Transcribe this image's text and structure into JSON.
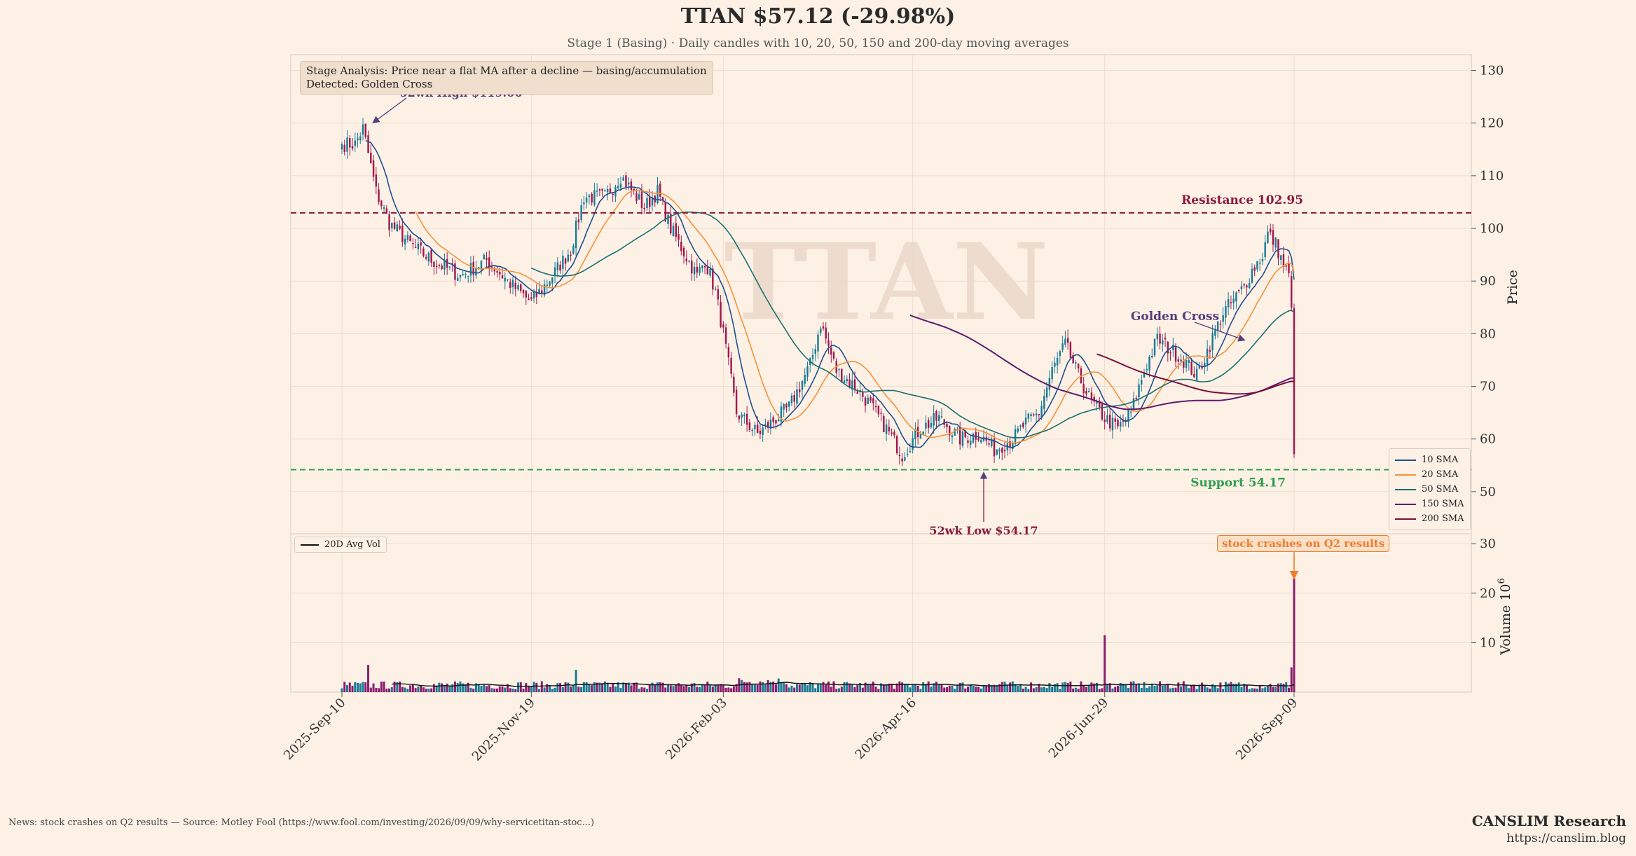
{
  "header": {
    "title": "TTAN  $57.12  (-29.98%)",
    "subtitle": "Stage 1 (Basing)  ·  Daily candles with 10, 20, 50, 150 and 200-day moving averages"
  },
  "stage_box": {
    "line1": "Stage Analysis: Price near a flat MA after a decline — basing/accumulation",
    "line2": "Detected: Golden Cross"
  },
  "watermark": "TTAN",
  "footer": {
    "news": "News: stock crashes on Q2 results — Source: Motley Fool (https://www.fool.com/investing/2026/09/09/why-servicetitan-stoc...)",
    "brand": "CANSLIM Research",
    "url": "https://canslim.blog"
  },
  "colors": {
    "background": "#fdf1e6",
    "candle_up": "#1a7a95",
    "candle_down": "#a3174e",
    "resistance": "#8b1a3e",
    "support": "#2e9e4e",
    "sma10": "#1f4f8f",
    "sma20": "#f5913a",
    "sma50": "#1b6f73",
    "sma150": "#5e1b6e",
    "sma200": "#7a0f3c",
    "event": "#f07c2e"
  },
  "chart_data": {
    "type": "candlestick",
    "x_ticks": [
      "2025-Sep-10",
      "2025-Nov-19",
      "2026-Feb-03",
      "2026-Apr-16",
      "2026-Jun-29",
      "2026-Sep-09"
    ],
    "price_axis": {
      "label": "Price",
      "ylim": [
        42,
        133
      ],
      "ticks": [
        50,
        60,
        70,
        80,
        90,
        100,
        110,
        120,
        130
      ]
    },
    "volume_axis": {
      "label": "Volume 10^6",
      "label_main": "Volume 10",
      "label_exp": "6",
      "ylim": [
        0,
        32
      ],
      "ticks": [
        10,
        20,
        30
      ]
    },
    "price_anchors": [
      [
        0,
        116
      ],
      [
        5,
        116
      ],
      [
        8,
        119
      ],
      [
        13,
        107
      ],
      [
        18,
        101
      ],
      [
        26,
        97
      ],
      [
        34,
        94
      ],
      [
        45,
        91
      ],
      [
        55,
        94
      ],
      [
        65,
        89
      ],
      [
        72,
        86
      ],
      [
        80,
        91
      ],
      [
        87,
        96
      ],
      [
        92,
        106
      ],
      [
        100,
        106
      ],
      [
        106,
        110
      ],
      [
        115,
        104
      ],
      [
        120,
        107
      ],
      [
        125,
        100
      ],
      [
        135,
        91
      ],
      [
        138,
        94
      ],
      [
        142,
        88
      ],
      [
        145,
        80
      ],
      [
        150,
        65
      ],
      [
        158,
        61
      ],
      [
        163,
        63
      ],
      [
        170,
        66
      ],
      [
        178,
        74
      ],
      [
        182,
        82
      ],
      [
        188,
        73
      ],
      [
        195,
        70
      ],
      [
        200,
        67
      ],
      [
        207,
        62
      ],
      [
        213,
        57
      ],
      [
        220,
        62
      ],
      [
        227,
        64
      ],
      [
        235,
        60
      ],
      [
        242,
        61
      ],
      [
        248,
        58
      ],
      [
        255,
        60
      ],
      [
        260,
        63
      ],
      [
        265,
        65
      ],
      [
        270,
        73
      ],
      [
        275,
        78
      ],
      [
        280,
        72
      ],
      [
        285,
        67
      ],
      [
        290,
        64
      ],
      [
        295,
        62
      ],
      [
        300,
        65
      ],
      [
        305,
        73
      ],
      [
        310,
        79
      ],
      [
        315,
        77
      ],
      [
        320,
        75
      ],
      [
        325,
        72
      ],
      [
        330,
        78
      ],
      [
        335,
        84
      ],
      [
        340,
        87
      ],
      [
        343,
        89
      ],
      [
        346,
        92
      ],
      [
        350,
        95
      ],
      [
        352,
        99
      ],
      [
        355,
        97
      ],
      [
        358,
        93
      ],
      [
        360,
        91
      ],
      [
        361,
        84
      ],
      [
        362,
        62
      ]
    ],
    "last_close": 57.12,
    "resistance": {
      "value": 102.95,
      "label": "Resistance 102.95"
    },
    "support": {
      "value": 54.17,
      "label": "Support 54.17"
    },
    "annotations": [
      {
        "id": "high",
        "label": "52wk High $119.66",
        "x": 11,
        "y": 119.66
      },
      {
        "id": "low",
        "label": "52wk Low $54.17",
        "x": 244,
        "y": 54.17
      },
      {
        "id": "golden",
        "label": "Golden Cross",
        "x": 344,
        "y": 78.5
      }
    ],
    "event": {
      "label": "stock crashes on Q2 results",
      "x": 362
    },
    "sma_series": [
      {
        "name": "10 SMA",
        "period": 10,
        "color": "#1f4f8f"
      },
      {
        "name": "20 SMA",
        "period": 20,
        "color": "#f5913a"
      },
      {
        "name": "50 SMA",
        "period": 50,
        "color": "#1b6f73"
      },
      {
        "name": "150 SMA",
        "period": 150,
        "color": "#5e1b6e"
      },
      {
        "name": "200 SMA",
        "period": 200,
        "color": "#7a0f3c"
      }
    ],
    "vol_legend": "20D Avg Vol",
    "volume_spikes": [
      [
        10,
        5.5
      ],
      [
        89,
        4.5
      ],
      [
        290,
        11.5
      ],
      [
        361,
        5
      ],
      [
        362,
        23
      ]
    ]
  }
}
